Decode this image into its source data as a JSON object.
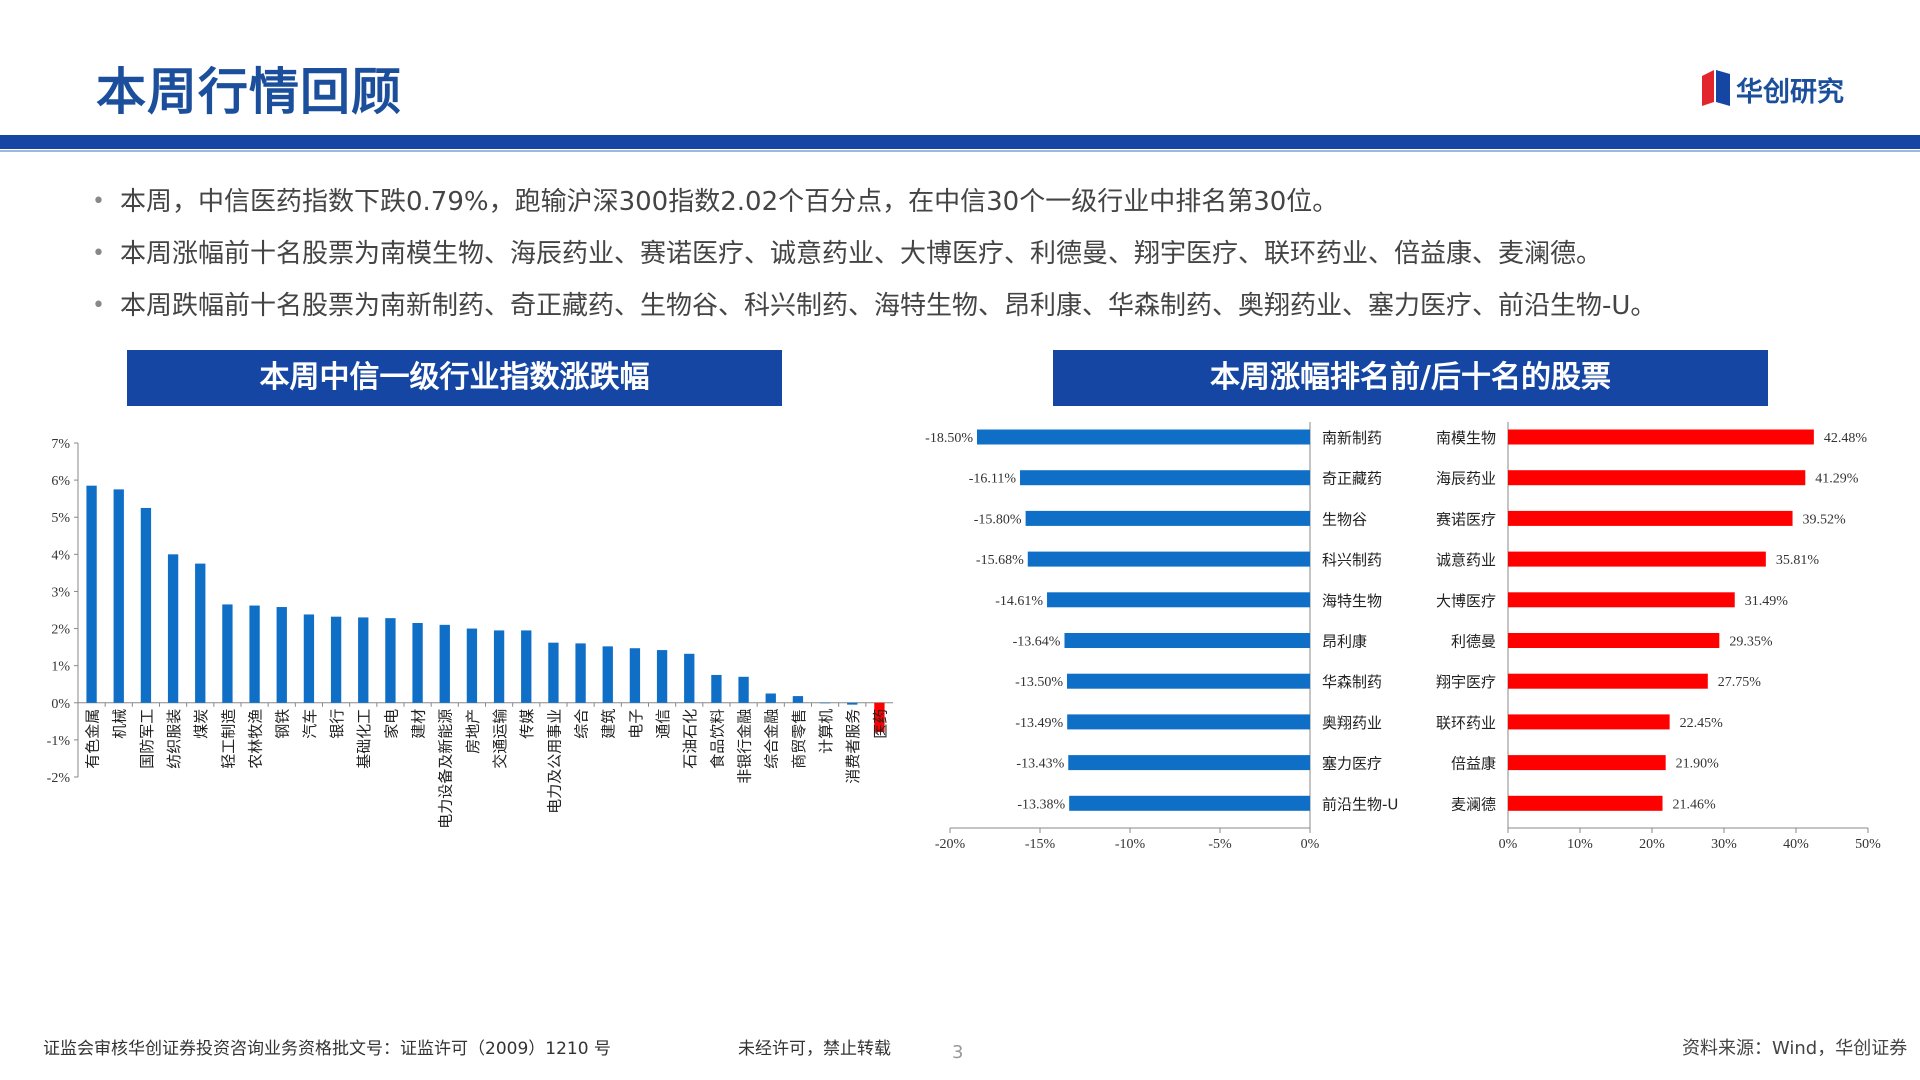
{
  "header": {
    "title": "本周行情回顾",
    "brand": "华创研究"
  },
  "bullets": [
    "本周，中信医药指数下跌0.79%，跑输沪深300指数2.02个百分点，在中信30个一级行业中排名第30位。",
    "本周涨幅前十名股票为南模生物、海辰药业、赛诺医疗、诚意药业、大博医疗、利德曼、翔宇医疗、联环药业、倍益康、麦澜德。",
    "本周跌幅前十名股票为南新制药、奇正藏药、生物谷、科兴制药、海特生物、昂利康、华森制药、奥翔药业、塞力医疗、前沿生物-U。"
  ],
  "panels": {
    "left_title": "本周中信一级行业指数涨跌幅",
    "right_title": "本周涨幅排名前/后十名的股票"
  },
  "colors": {
    "brand_blue": "#1546a3",
    "bar_blue": "#0f6fc6",
    "bar_red": "#ff0000"
  },
  "chart_data": [
    {
      "type": "bar",
      "title": "本周中信一级行业指数涨跌幅",
      "categories": [
        "有色金属",
        "机械",
        "国防军工",
        "纺织服装",
        "煤炭",
        "轻工制造",
        "农林牧渔",
        "钢铁",
        "汽车",
        "银行",
        "基础化工",
        "家电",
        "建材",
        "电力设备及新能源",
        "房地产",
        "交通运输",
        "传媒",
        "电力及公用事业",
        "综合",
        "建筑",
        "电子",
        "通信",
        "石油石化",
        "食品饮料",
        "非银行金融",
        "综合金融",
        "商贸零售",
        "计算机",
        "消费者服务",
        "医药"
      ],
      "values": [
        5.85,
        5.75,
        5.25,
        4.0,
        3.75,
        2.65,
        2.62,
        2.58,
        2.38,
        2.32,
        2.3,
        2.28,
        2.15,
        2.1,
        2.0,
        1.95,
        1.95,
        1.62,
        1.6,
        1.52,
        1.47,
        1.42,
        1.32,
        0.75,
        0.7,
        0.25,
        0.18,
        0.0,
        -0.05,
        -0.79
      ],
      "highlight": "医药",
      "ylim": [
        -2,
        7
      ],
      "yticks": [
        "-2%",
        "-1%",
        "0%",
        "1%",
        "2%",
        "3%",
        "4%",
        "5%",
        "6%",
        "7%"
      ]
    },
    {
      "type": "bar",
      "orientation": "horizontal",
      "name": "跌幅前十",
      "categories": [
        "南新制药",
        "奇正藏药",
        "生物谷",
        "科兴制药",
        "海特生物",
        "昂利康",
        "华森制药",
        "奥翔药业",
        "塞力医疗",
        "前沿生物-U"
      ],
      "values": [
        -18.5,
        -16.11,
        -15.8,
        -15.68,
        -14.61,
        -13.64,
        -13.5,
        -13.49,
        -13.43,
        -13.38
      ],
      "labels": [
        "-18.50%",
        "-16.11%",
        "-15.80%",
        "-15.68%",
        "-14.61%",
        "-13.64%",
        "-13.50%",
        "-13.49%",
        "-13.43%",
        "-13.38%"
      ],
      "xlim": [
        -20,
        0
      ],
      "xticks": [
        "-20%",
        "-15%",
        "-10%",
        "-5%",
        "0%"
      ]
    },
    {
      "type": "bar",
      "orientation": "horizontal",
      "name": "涨幅前十",
      "categories": [
        "南模生物",
        "海辰药业",
        "赛诺医疗",
        "诚意药业",
        "大博医疗",
        "利德曼",
        "翔宇医疗",
        "联环药业",
        "倍益康",
        "麦澜德"
      ],
      "values": [
        42.48,
        41.29,
        39.52,
        35.81,
        31.49,
        29.35,
        27.75,
        22.45,
        21.9,
        21.46
      ],
      "labels": [
        "42.48%",
        "41.29%",
        "39.52%",
        "35.81%",
        "31.49%",
        "29.35%",
        "27.75%",
        "22.45%",
        "21.90%",
        "21.46%"
      ],
      "xlim": [
        0,
        50
      ],
      "xticks": [
        "0%",
        "10%",
        "20%",
        "30%",
        "40%",
        "50%"
      ]
    }
  ],
  "footer": {
    "license": "证监会审核华创证券投资咨询业务资格批文号：证监许可（2009）1210 号",
    "notice": "未经许可，禁止转载",
    "page": "3",
    "source": "资料来源：Wind，华创证券"
  }
}
